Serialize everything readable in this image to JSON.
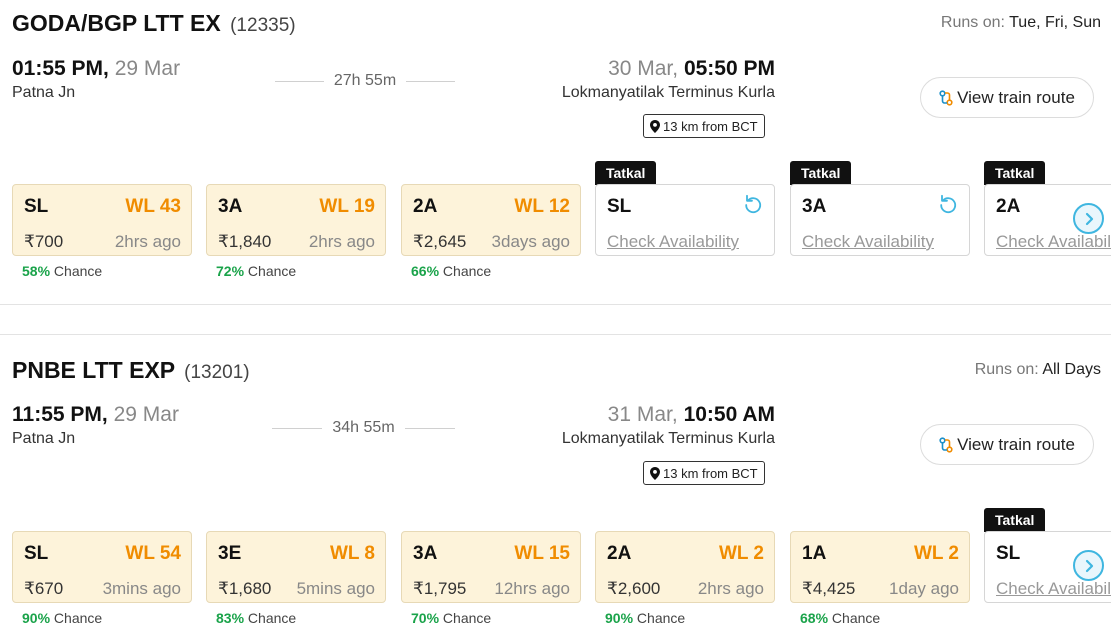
{
  "runs_label": "Runs on:",
  "pin_text": "13 km from BCT",
  "route_label": "View train route",
  "chance_label": "Chance",
  "check_label": "Check Availability",
  "tatkal_label": "Tatkal",
  "colors": {
    "waitlist": "#f08c00",
    "chance": "#1aa34a",
    "card_bg": "#fdf3da",
    "accent": "#3fb6e0"
  },
  "icons": [
    "map-pin-icon",
    "route-icon",
    "refresh-icon",
    "chevron-right-icon"
  ],
  "trains": [
    {
      "name": "GODA/BGP LTT EX",
      "number": "(12335)",
      "runs_on": "Tue, Fri, Sun",
      "dep_time": "01:55 PM,",
      "dep_date": "29 Mar",
      "dep_station": "Patna Jn",
      "duration": "27h 55m",
      "arr_date": "30 Mar,",
      "arr_time": "05:50 PM",
      "arr_station": "Lokmanyatilak Terminus Kurla",
      "fares": [
        {
          "cls": "SL",
          "status": "WL 43",
          "price": "₹700",
          "updated": "2hrs ago",
          "chance": "58%"
        },
        {
          "cls": "3A",
          "status": "WL 19",
          "price": "₹1,840",
          "updated": "2hrs ago",
          "chance": "72%"
        },
        {
          "cls": "2A",
          "status": "WL 12",
          "price": "₹2,645",
          "updated": "3days ago",
          "chance": "66%"
        },
        {
          "cls": "SL",
          "tatkal": true
        },
        {
          "cls": "3A",
          "tatkal": true
        },
        {
          "cls": "2A",
          "tatkal": true
        }
      ]
    },
    {
      "name": "PNBE LTT EXP",
      "number": "(13201)",
      "runs_on": "All Days",
      "dep_time": "11:55 PM,",
      "dep_date": "29 Mar",
      "dep_station": "Patna Jn",
      "duration": "34h 55m",
      "arr_date": "31 Mar,",
      "arr_time": "10:50 AM",
      "arr_station": "Lokmanyatilak Terminus Kurla",
      "fares": [
        {
          "cls": "SL",
          "status": "WL 54",
          "price": "₹670",
          "updated": "3mins ago",
          "chance": "90%"
        },
        {
          "cls": "3E",
          "status": "WL 8",
          "price": "₹1,680",
          "updated": "5mins ago",
          "chance": "83%"
        },
        {
          "cls": "3A",
          "status": "WL 15",
          "price": "₹1,795",
          "updated": "12hrs ago",
          "chance": "70%"
        },
        {
          "cls": "2A",
          "status": "WL 2",
          "price": "₹2,600",
          "updated": "2hrs ago",
          "chance": "90%"
        },
        {
          "cls": "1A",
          "status": "WL 2",
          "price": "₹4,425",
          "updated": "1day ago",
          "chance": "68%"
        },
        {
          "cls": "SL",
          "tatkal": true
        }
      ]
    }
  ]
}
